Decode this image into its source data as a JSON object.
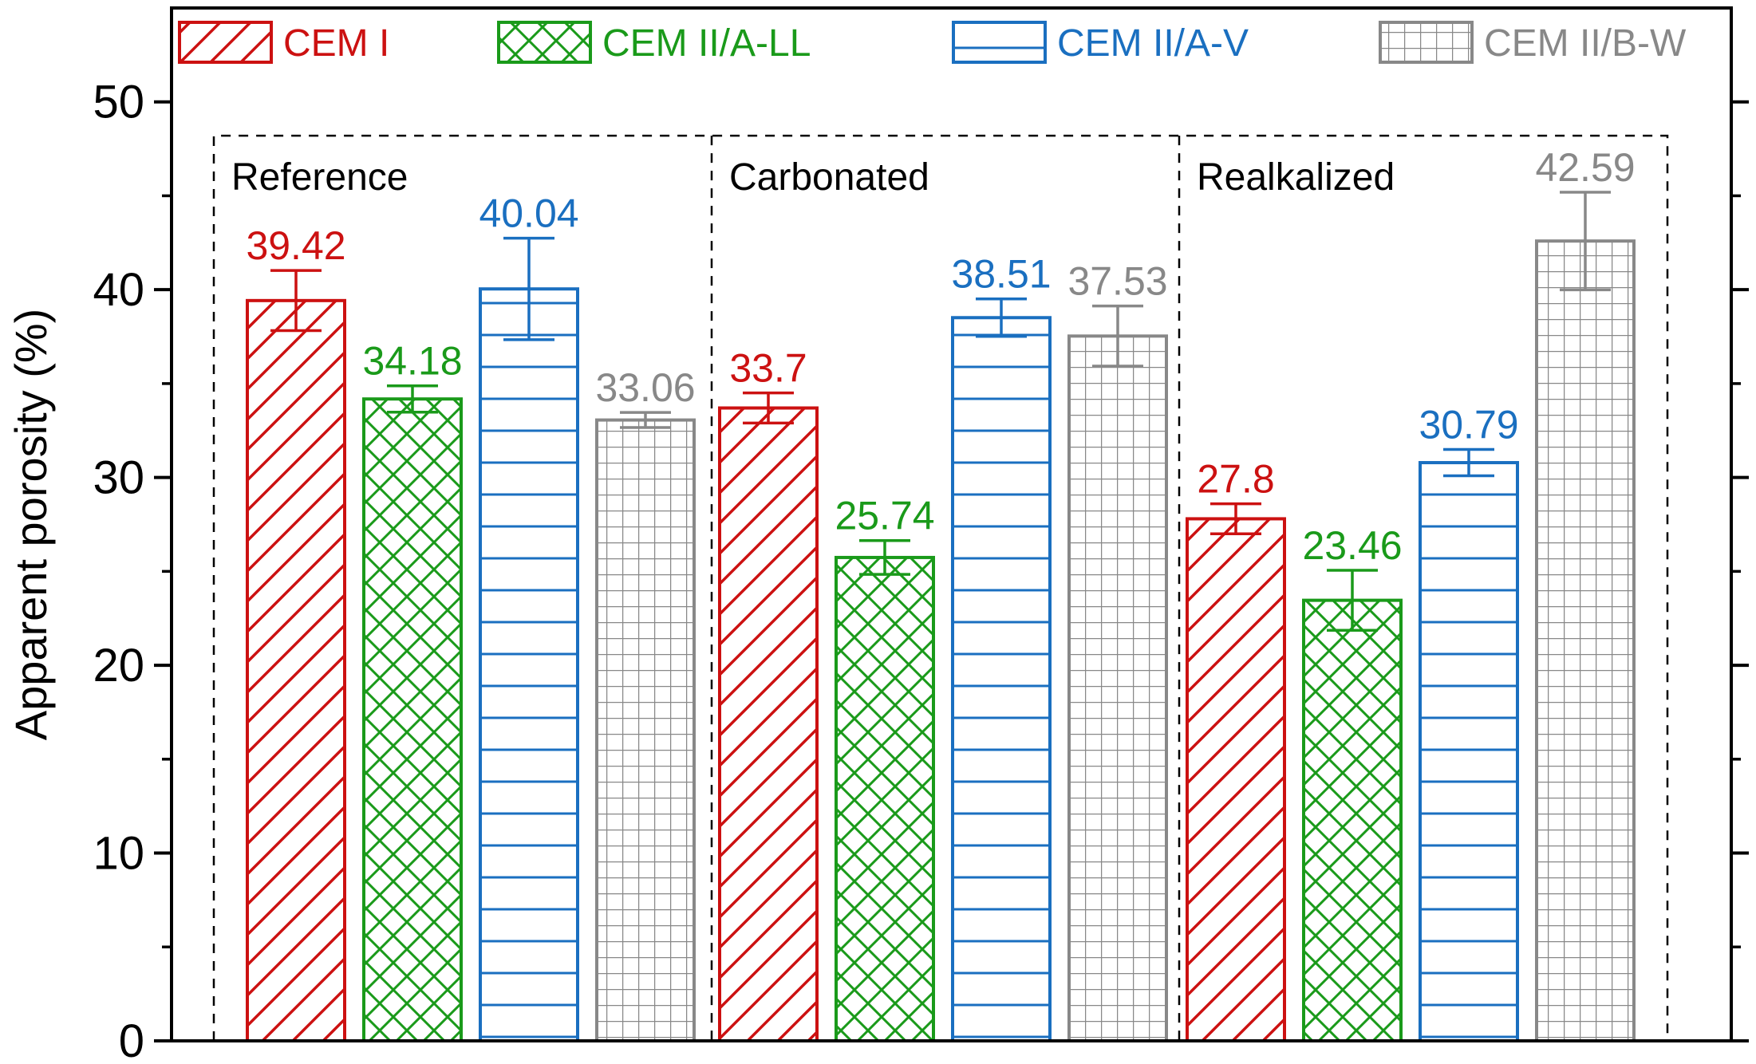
{
  "chart_data": {
    "type": "bar",
    "ylabel": "Apparent porosity (%)",
    "ylim": [
      0,
      55
    ],
    "yticks": [
      0,
      10,
      20,
      30,
      40,
      50
    ],
    "legend_position": "top",
    "categories": [
      "Reference",
      "Carbonated",
      "Realkalized"
    ],
    "series": [
      {
        "name": "CEM I",
        "color": "#cc1111",
        "pattern": "diagonal-hatch",
        "values": [
          39.42,
          33.7,
          27.8
        ],
        "labels": [
          "39.42",
          "33.7",
          "27.8"
        ],
        "errors": [
          1.6,
          0.8,
          0.8
        ]
      },
      {
        "name": "CEM II/A-LL",
        "color": "#1a9a1a",
        "pattern": "cross-hatch",
        "values": [
          34.18,
          25.74,
          23.46
        ],
        "labels": [
          "34.18",
          "25.74",
          "23.46"
        ],
        "errors": [
          0.7,
          0.9,
          1.6
        ]
      },
      {
        "name": "CEM II/A-V",
        "color": "#1a6fc0",
        "pattern": "horizontal-lines",
        "values": [
          40.04,
          38.51,
          30.79
        ],
        "labels": [
          "40.04",
          "38.51",
          "30.79"
        ],
        "errors": [
          2.7,
          1.0,
          0.7
        ]
      },
      {
        "name": "CEM II/B-W",
        "color": "#888888",
        "pattern": "grid",
        "values": [
          33.06,
          37.53,
          42.59
        ],
        "labels": [
          "33.06",
          "37.53",
          "42.59"
        ],
        "errors": [
          0.4,
          1.6,
          2.6
        ]
      }
    ]
  }
}
